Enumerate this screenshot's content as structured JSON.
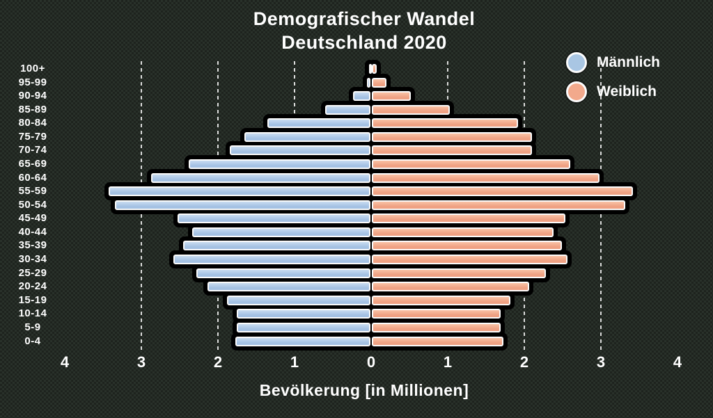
{
  "title": {
    "line1": "Demografischer Wandel",
    "line2": "Deutschland 2020"
  },
  "legend": {
    "items": [
      {
        "label": "Männlich",
        "color": "#a9c6e3"
      },
      {
        "label": "Weiblich",
        "color": "#f2a98c"
      }
    ]
  },
  "x_axis": {
    "label": "Bevölkerung [in Millionen]",
    "ticks": [
      {
        "label": "4",
        "value": -4
      },
      {
        "label": "3",
        "value": -3
      },
      {
        "label": "2",
        "value": -2
      },
      {
        "label": "1",
        "value": -1
      },
      {
        "label": "0",
        "value": 0
      },
      {
        "label": "1",
        "value": 1
      },
      {
        "label": "2",
        "value": 2
      },
      {
        "label": "3",
        "value": 3
      },
      {
        "label": "4",
        "value": 4
      }
    ]
  },
  "chart_data": {
    "type": "bar",
    "subtype": "population-pyramid",
    "title": "Demografischer Wandel Deutschland 2020",
    "xlabel": "Bevölkerung [in Millionen]",
    "unit": "Millionen Personen",
    "xlim": [
      -4.4,
      4.4
    ],
    "grid": "dashed vertical lines at 1,2,3 on both sides",
    "legend_position": "top-right",
    "categories": [
      "100+",
      "95-99",
      "90-94",
      "85-89",
      "80-84",
      "75-79",
      "70-74",
      "65-69",
      "60-64",
      "55-59",
      "50-54",
      "45-49",
      "40-44",
      "35-39",
      "30-34",
      "25-29",
      "20-24",
      "15-19",
      "10-14",
      "5-9",
      "0-4"
    ],
    "series": [
      {
        "name": "Männlich",
        "key": "male",
        "side": "left",
        "color": "#a9c6e3",
        "values": [
          0.02,
          0.05,
          0.23,
          0.59,
          1.35,
          1.65,
          1.84,
          2.37,
          2.86,
          3.42,
          3.34,
          2.52,
          2.33,
          2.45,
          2.57,
          2.27,
          2.13,
          1.87,
          1.75,
          1.75,
          1.76
        ]
      },
      {
        "name": "Weiblich",
        "key": "female",
        "side": "right",
        "color": "#f2a98c",
        "values": [
          0.06,
          0.19,
          0.51,
          1.02,
          1.91,
          2.09,
          2.09,
          2.59,
          2.97,
          3.41,
          3.31,
          2.53,
          2.37,
          2.48,
          2.55,
          2.27,
          2.05,
          1.81,
          1.68,
          1.68,
          1.72
        ]
      }
    ],
    "grid_values": [
      -3,
      -2,
      -1,
      1,
      2,
      3
    ]
  }
}
